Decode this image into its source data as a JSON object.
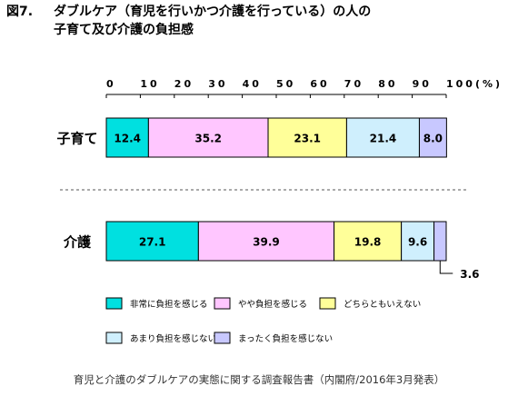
{
  "figure": {
    "label": "図7.",
    "title_line1": "ダブルケア（育児を行いかつ介護を行っている）の人の",
    "title_line2": "子育て及び介護の負担感"
  },
  "source": "育児と介護のダブルケアの実態に関する調査報告書（内閣府/2016年3月発表）",
  "chart_data": {
    "type": "bar",
    "stacked": true,
    "orientation": "horizontal",
    "categories": [
      "子育て",
      "介護"
    ],
    "series": [
      {
        "name": "非常に負担を感じる",
        "color": "#00e0e0",
        "values": [
          12.4,
          27.1
        ]
      },
      {
        "name": "やや負担を感じる",
        "color": "#ffc6ff",
        "values": [
          35.2,
          39.9
        ]
      },
      {
        "name": "どちらともいえない",
        "color": "#ffff99",
        "values": [
          23.1,
          19.8
        ]
      },
      {
        "name": "あまり負担を感じない",
        "color": "#cfeffd",
        "values": [
          21.4,
          9.6
        ]
      },
      {
        "name": "まったく負担を感じない",
        "color": "#c8c8ff",
        "values": [
          8.0,
          3.6
        ]
      }
    ],
    "value_labels": [
      [
        "12.4",
        "35.2",
        "23.1",
        "21.4",
        "8.0"
      ],
      [
        "27.1",
        "39.9",
        "19.8",
        "9.6",
        ""
      ]
    ],
    "callout": {
      "category_index": 1,
      "series_index": 4,
      "text": "3.6"
    },
    "xlim": [
      0,
      100
    ],
    "xticks": [
      0,
      10,
      20,
      30,
      40,
      50,
      60,
      70,
      80,
      90,
      100
    ],
    "xtick_labels": [
      "0",
      "10",
      "20",
      "30",
      "40",
      "50",
      "60",
      "70",
      "80",
      "90",
      "100(%)"
    ],
    "axis_position": "top",
    "legend_position": "bottom",
    "separator": "dashed"
  }
}
